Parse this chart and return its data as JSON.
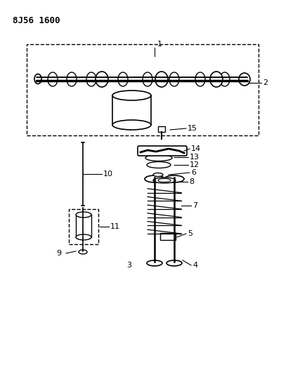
{
  "title": "8J56 1600",
  "bg_color": "#ffffff",
  "line_color": "#000000",
  "fig_width": 4.0,
  "fig_height": 5.33,
  "dpi": 100
}
